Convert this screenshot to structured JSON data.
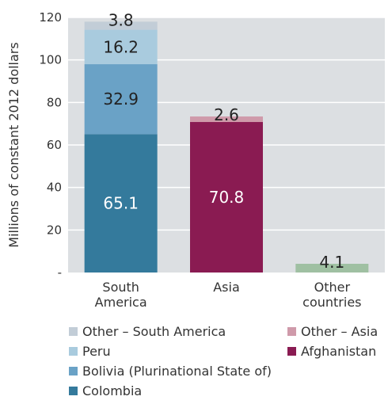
{
  "chart_data": {
    "type": "bar",
    "stacked": true,
    "ylabel": "Millions of constant 2012 dollars",
    "ylim": [
      0,
      120
    ],
    "yticks": [
      0,
      20,
      40,
      60,
      80,
      100,
      120
    ],
    "ytick_labels": [
      "-",
      "20",
      "40",
      "60",
      "80",
      "100",
      "120"
    ],
    "categories": [
      "South America",
      "Asia",
      "Other countries"
    ],
    "category_labels": [
      [
        "South",
        "America"
      ],
      [
        "Asia"
      ],
      [
        "Other",
        "countries"
      ]
    ],
    "bars": [
      {
        "category": "South America",
        "segments": [
          {
            "name": "Colombia",
            "value": 65.1,
            "label": "65.1",
            "color": "#347a9c",
            "text_color": "#ffffff"
          },
          {
            "name": "Bolivia (Plurinational State of)",
            "value": 32.9,
            "label": "32.9",
            "color": "#6aa2c6",
            "text_color": "#222222"
          },
          {
            "name": "Peru",
            "value": 16.2,
            "label": "16.2",
            "color": "#a9cbde",
            "text_color": "#222222"
          },
          {
            "name": "Other – South America",
            "value": 3.8,
            "label": "3.8",
            "color": "#c2cdd7",
            "text_color": "#222222"
          }
        ]
      },
      {
        "category": "Asia",
        "segments": [
          {
            "name": "Afghanistan",
            "value": 70.8,
            "label": "70.8",
            "color": "#8a1b52",
            "text_color": "#ffffff"
          },
          {
            "name": "Other – Asia",
            "value": 2.6,
            "label": "2.6",
            "color": "#cf9aaa",
            "text_color": "#222222"
          }
        ]
      },
      {
        "category": "Other countries",
        "segments": [
          {
            "name": "Other countries",
            "value": 4.1,
            "label": "4.1",
            "color": "#9fc0a2",
            "text_color": "#222222"
          }
        ]
      }
    ],
    "legend": [
      {
        "name": "Other – South America",
        "color": "#c2cdd7"
      },
      {
        "name": "Peru",
        "color": "#a9cbde"
      },
      {
        "name": "Bolivia (Plurinational State of)",
        "color": "#6aa2c6"
      },
      {
        "name": "Colombia",
        "color": "#347a9c"
      },
      {
        "name": "Other – Asia",
        "color": "#cf9aaa"
      },
      {
        "name": "Afghanistan",
        "color": "#8a1b52"
      }
    ],
    "legend_position": "bottom",
    "grid": true,
    "plot_background": "#dcdfe2",
    "grid_color": "#ffffff"
  }
}
